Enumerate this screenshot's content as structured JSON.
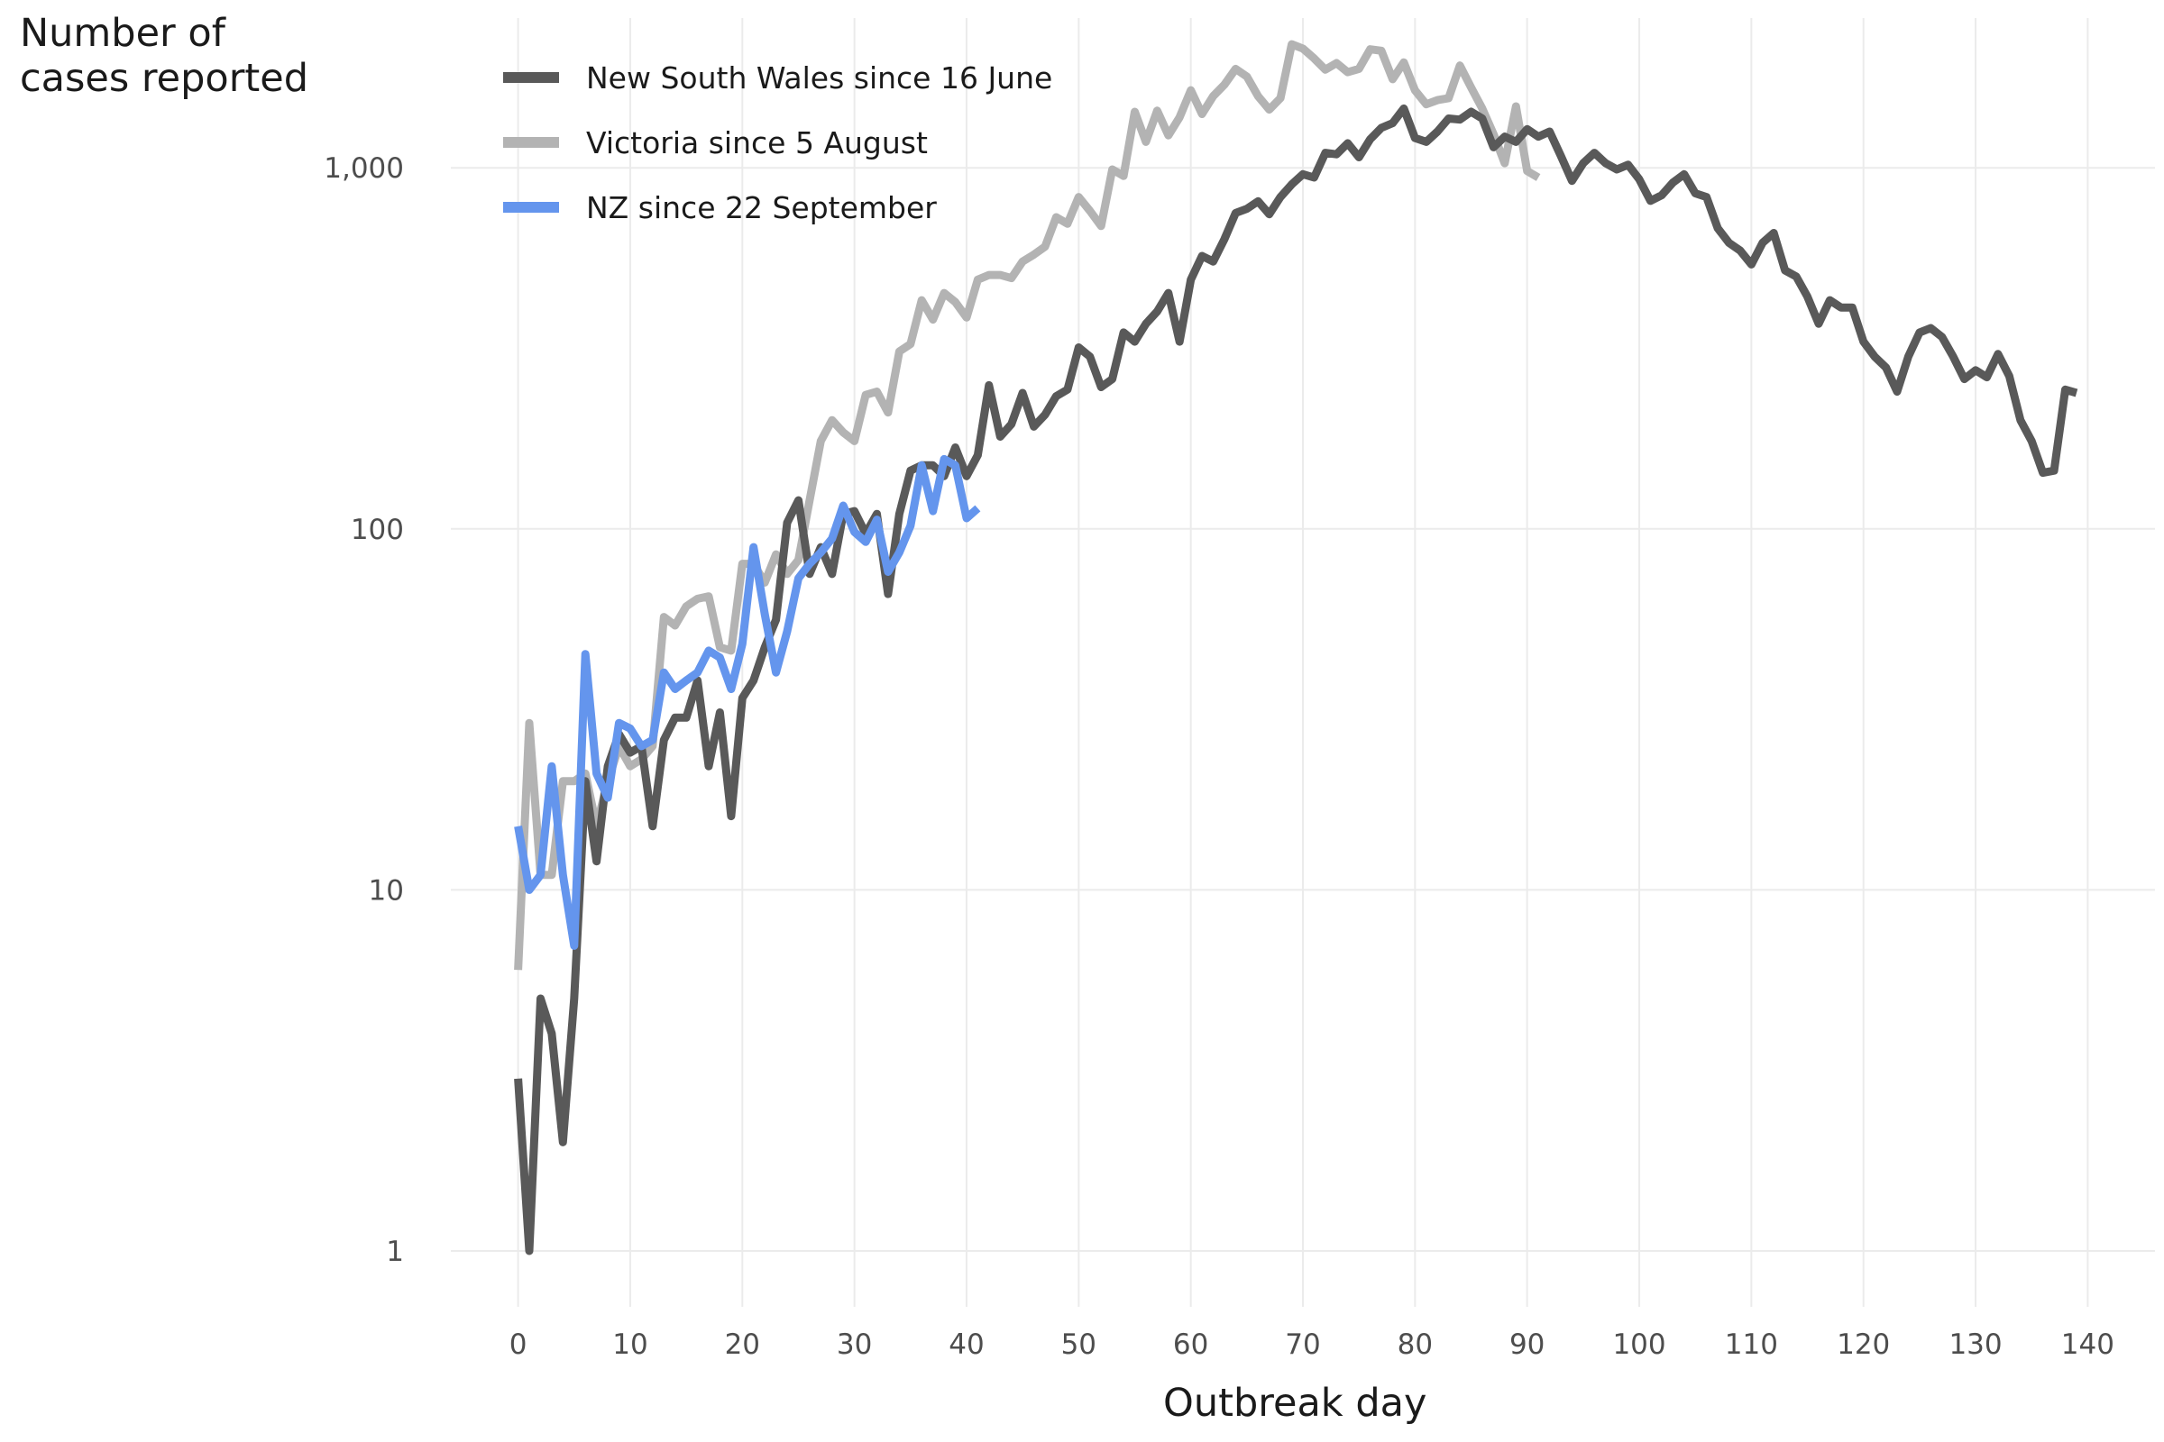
{
  "chart_data": {
    "type": "line",
    "ylabel_lines": [
      "Number of",
      "cases reported"
    ],
    "xlabel": "Outbreak day",
    "y_scale": "log10",
    "ylim": [
      0.7,
      2600
    ],
    "xlim": [
      -6,
      146
    ],
    "y_ticks": [
      {
        "value": 1,
        "label": "1"
      },
      {
        "value": 10,
        "label": "10"
      },
      {
        "value": 100,
        "label": "100"
      },
      {
        "value": 1000,
        "label": "1,000"
      }
    ],
    "x_ticks": [
      {
        "value": 0,
        "label": "0"
      },
      {
        "value": 10,
        "label": "10"
      },
      {
        "value": 20,
        "label": "20"
      },
      {
        "value": 30,
        "label": "30"
      },
      {
        "value": 40,
        "label": "40"
      },
      {
        "value": 50,
        "label": "50"
      },
      {
        "value": 60,
        "label": "60"
      },
      {
        "value": 70,
        "label": "70"
      },
      {
        "value": 80,
        "label": "80"
      },
      {
        "value": 90,
        "label": "90"
      },
      {
        "value": 100,
        "label": "100"
      },
      {
        "value": 110,
        "label": "110"
      },
      {
        "value": 120,
        "label": "120"
      },
      {
        "value": 130,
        "label": "130"
      },
      {
        "value": 140,
        "label": "140"
      }
    ],
    "grid": true,
    "legend_position": "top-left",
    "series": [
      {
        "name": "Victoria since 5 August",
        "color": "#b3b3b3",
        "values": [
          6,
          29,
          11,
          11,
          20,
          20,
          21,
          15,
          20,
          25,
          22,
          23,
          25,
          57,
          54,
          61,
          64,
          65,
          47,
          46,
          80,
          80,
          71,
          85,
          75,
          82,
          120,
          175,
          200,
          185,
          175,
          235,
          240,
          210,
          310,
          325,
          430,
          380,
          450,
          425,
          385,
          490,
          505,
          505,
          495,
          550,
          575,
          605,
          730,
          700,
          830,
          760,
          690,
          990,
          950,
          1430,
          1180,
          1440,
          1230,
          1380,
          1640,
          1410,
          1580,
          1700,
          1880,
          1790,
          1580,
          1450,
          1560,
          2200,
          2140,
          2010,
          1870,
          1950,
          1840,
          1880,
          2130,
          2110,
          1760,
          1960,
          1640,
          1500,
          1540,
          1560,
          1920,
          1670,
          1460,
          1240,
          1030,
          1480,
          980,
          940
        ]
      },
      {
        "name": "New South Wales since 16 June",
        "color": "#595959",
        "values": [
          3,
          1,
          5,
          4,
          2,
          5,
          20,
          12,
          22,
          27,
          24,
          25,
          15,
          26,
          30,
          30,
          38,
          22,
          31,
          16,
          34,
          38,
          47,
          56,
          104,
          120,
          75,
          89,
          75,
          110,
          112,
          97,
          110,
          66,
          110,
          145,
          150,
          150,
          140,
          168,
          140,
          160,
          250,
          180,
          195,
          238,
          192,
          207,
          233,
          243,
          318,
          300,
          247,
          260,
          350,
          330,
          370,
          400,
          450,
          330,
          490,
          570,
          550,
          635,
          750,
          770,
          808,
          744,
          830,
          900,
          960,
          940,
          1100,
          1090,
          1170,
          1070,
          1200,
          1290,
          1330,
          1460,
          1210,
          1180,
          1260,
          1370,
          1360,
          1430,
          1370,
          1140,
          1220,
          1180,
          1280,
          1220,
          1260,
          1080,
          920,
          1030,
          1100,
          1030,
          990,
          1020,
          930,
          810,
          840,
          910,
          960,
          850,
          830,
          680,
          620,
          590,
          540,
          620,
          660,
          520,
          500,
          440,
          370,
          430,
          410,
          410,
          330,
          300,
          280,
          240,
          300,
          350,
          360,
          340,
          300,
          260,
          275,
          263,
          305,
          265,
          200,
          175,
          143,
          145,
          243,
          238
        ]
      },
      {
        "name": "NZ since 22 September",
        "color": "#6495ed",
        "values": [
          15,
          10,
          11,
          22,
          11,
          7,
          45,
          21,
          18,
          29,
          28,
          25,
          26,
          40,
          36,
          38,
          40,
          46,
          44,
          36,
          48,
          89,
          58,
          40,
          52,
          73,
          80,
          86,
          94,
          116,
          98,
          92,
          106,
          76,
          86,
          102,
          150,
          112,
          156,
          150,
          107,
          114
        ]
      }
    ]
  }
}
